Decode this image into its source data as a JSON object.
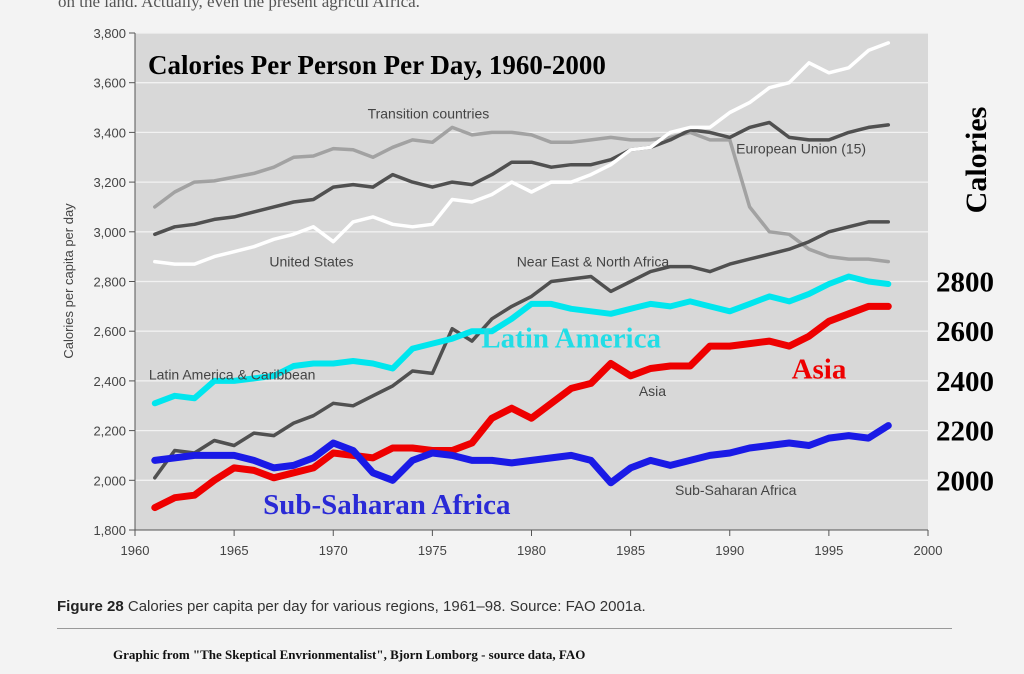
{
  "header_text": "on the land. Actually, even the present agricul        Africa.",
  "caption": {
    "figure_label": "Figure 28",
    "text": "Calories per capita per day for various regions, 1961–98. Source: FAO 2001a."
  },
  "credit": "Graphic from \"The Skeptical Envrionmentalist\", Bjorn Lomborg - source data, FAO",
  "chart_data": {
    "type": "line",
    "title": "Calories Per Person Per Day, 1960-2000",
    "ylabel": "Calories per capita per day",
    "right_axis_title": "Calories",
    "xlim": [
      1960,
      2000
    ],
    "ylim": [
      1800,
      3800
    ],
    "x_ticks": [
      1960,
      1965,
      1970,
      1975,
      1980,
      1985,
      1990,
      1995,
      2000
    ],
    "y_ticks": [
      1800,
      2000,
      2200,
      2400,
      2600,
      2800,
      3000,
      3200,
      3400,
      3600,
      3800
    ],
    "y_tick_labels": [
      "1,800",
      "2,000",
      "2,200",
      "2,400",
      "2,600",
      "2,800",
      "3,000",
      "3,200",
      "3,400",
      "3,600",
      "3,800"
    ],
    "right_ticks": [
      "2800",
      "2600",
      "2400",
      "2200",
      "2000"
    ],
    "right_tick_values": [
      2800,
      2600,
      2400,
      2200,
      2000
    ],
    "x": [
      1961,
      1962,
      1963,
      1964,
      1965,
      1966,
      1967,
      1968,
      1969,
      1970,
      1971,
      1972,
      1973,
      1974,
      1975,
      1976,
      1977,
      1978,
      1979,
      1980,
      1981,
      1982,
      1983,
      1984,
      1985,
      1986,
      1987,
      1988,
      1989,
      1990,
      1991,
      1992,
      1993,
      1994,
      1995,
      1996,
      1997,
      1998
    ],
    "series": [
      {
        "name": "Transition countries",
        "color": "#a2a2a2",
        "width": 3.5,
        "values": [
          3100,
          3160,
          3200,
          3205,
          3220,
          3235,
          3260,
          3300,
          3305,
          3335,
          3330,
          3300,
          3340,
          3370,
          3360,
          3420,
          3390,
          3400,
          3400,
          3390,
          3360,
          3360,
          3370,
          3380,
          3370,
          3370,
          3380,
          3400,
          3370,
          3370,
          3100,
          3000,
          2990,
          2930,
          2900,
          2890,
          2890,
          2880
        ]
      },
      {
        "name": "European Union (15)",
        "color": "#505050",
        "width": 3.5,
        "values": [
          2990,
          3020,
          3030,
          3050,
          3060,
          3080,
          3100,
          3120,
          3130,
          3180,
          3190,
          3180,
          3230,
          3200,
          3180,
          3200,
          3190,
          3230,
          3280,
          3280,
          3260,
          3270,
          3270,
          3290,
          3330,
          3340,
          3370,
          3410,
          3400,
          3380,
          3420,
          3440,
          3380,
          3370,
          3370,
          3400,
          3420,
          3430
        ]
      },
      {
        "name": "United States",
        "color": "#ffffff",
        "width": 3.5,
        "values": [
          2880,
          2870,
          2870,
          2900,
          2920,
          2940,
          2970,
          2990,
          3020,
          2960,
          3040,
          3060,
          3030,
          3020,
          3030,
          3130,
          3120,
          3150,
          3200,
          3160,
          3200,
          3200,
          3230,
          3270,
          3330,
          3340,
          3400,
          3420,
          3420,
          3480,
          3520,
          3580,
          3600,
          3680,
          3640,
          3660,
          3730,
          3760
        ]
      },
      {
        "name": "Near East & North Africa",
        "color": "#505050",
        "width": 3.5,
        "values": [
          2010,
          2120,
          2110,
          2160,
          2140,
          2190,
          2180,
          2230,
          2260,
          2310,
          2300,
          2340,
          2380,
          2440,
          2430,
          2610,
          2560,
          2650,
          2700,
          2740,
          2800,
          2810,
          2820,
          2760,
          2800,
          2840,
          2860,
          2860,
          2840,
          2870,
          2890,
          2910,
          2930,
          2960,
          3000,
          3020,
          3040,
          3040
        ]
      },
      {
        "name": "Latin America & Caribbean",
        "color": "#00e6ee",
        "width": 6,
        "values": [
          2310,
          2340,
          2330,
          2400,
          2400,
          2410,
          2420,
          2460,
          2470,
          2470,
          2480,
          2470,
          2450,
          2530,
          2550,
          2570,
          2600,
          2600,
          2650,
          2710,
          2710,
          2690,
          2680,
          2670,
          2690,
          2710,
          2700,
          2720,
          2700,
          2680,
          2710,
          2740,
          2720,
          2750,
          2790,
          2820,
          2800,
          2790
        ]
      },
      {
        "name": "Asia",
        "color": "#ee0000",
        "width": 7,
        "values": [
          1890,
          1930,
          1940,
          2000,
          2050,
          2040,
          2010,
          2030,
          2050,
          2110,
          2100,
          2090,
          2130,
          2130,
          2120,
          2120,
          2150,
          2250,
          2290,
          2250,
          2310,
          2370,
          2390,
          2470,
          2420,
          2450,
          2460,
          2460,
          2540,
          2540,
          2550,
          2560,
          2540,
          2580,
          2640,
          2670,
          2700,
          2700
        ]
      },
      {
        "name": "Sub-Saharan Africa",
        "color": "#1a1ae6",
        "width": 7,
        "values": [
          2080,
          2090,
          2100,
          2100,
          2100,
          2080,
          2050,
          2060,
          2090,
          2150,
          2120,
          2030,
          2000,
          2080,
          2110,
          2100,
          2080,
          2080,
          2070,
          2080,
          2090,
          2100,
          2080,
          1990,
          2050,
          2080,
          2060,
          2080,
          2100,
          2110,
          2130,
          2140,
          2150,
          2140,
          2170,
          2180,
          2170,
          2220
        ]
      }
    ],
    "annotations": [
      {
        "key": "transition",
        "text": "Transition countries",
        "x": 1974.8,
        "y": 3455,
        "style": "gray",
        "anchor": "middle"
      },
      {
        "key": "eu",
        "text": "European Union (15)",
        "x": 1993.6,
        "y": 3315,
        "style": "gray",
        "anchor": "middle"
      },
      {
        "key": "us",
        "text": "United States",
        "x": 1968.9,
        "y": 2860,
        "style": "gray",
        "anchor": "middle"
      },
      {
        "key": "nena",
        "text": "Near East & North Africa",
        "x": 1983.1,
        "y": 2860,
        "style": "gray",
        "anchor": "middle"
      },
      {
        "key": "lac",
        "text": "Latin America & Caribbean",
        "x": 1964.9,
        "y": 2405,
        "style": "gray",
        "anchor": "middle"
      },
      {
        "key": "asia_small",
        "text": "Asia",
        "x": 1986.1,
        "y": 2340,
        "style": "gray",
        "anchor": "middle"
      },
      {
        "key": "ssa_small",
        "text": "Sub-Saharan Africa",
        "x": 1990.3,
        "y": 1940,
        "style": "gray",
        "anchor": "middle"
      },
      {
        "key": "latin_big",
        "text": "Latin America",
        "x": 1982.0,
        "y": 2535,
        "style": "big",
        "color": "#22dde6",
        "anchor": "middle"
      },
      {
        "key": "asia_big",
        "text": "Asia",
        "x": 1994.5,
        "y": 2410,
        "style": "big",
        "color": "#ee0000",
        "anchor": "middle"
      },
      {
        "key": "ssa_big",
        "text": "Sub-Saharan Africa",
        "x": 1972.7,
        "y": 1865,
        "style": "big",
        "color": "#2a2ad6",
        "anchor": "middle"
      }
    ]
  }
}
